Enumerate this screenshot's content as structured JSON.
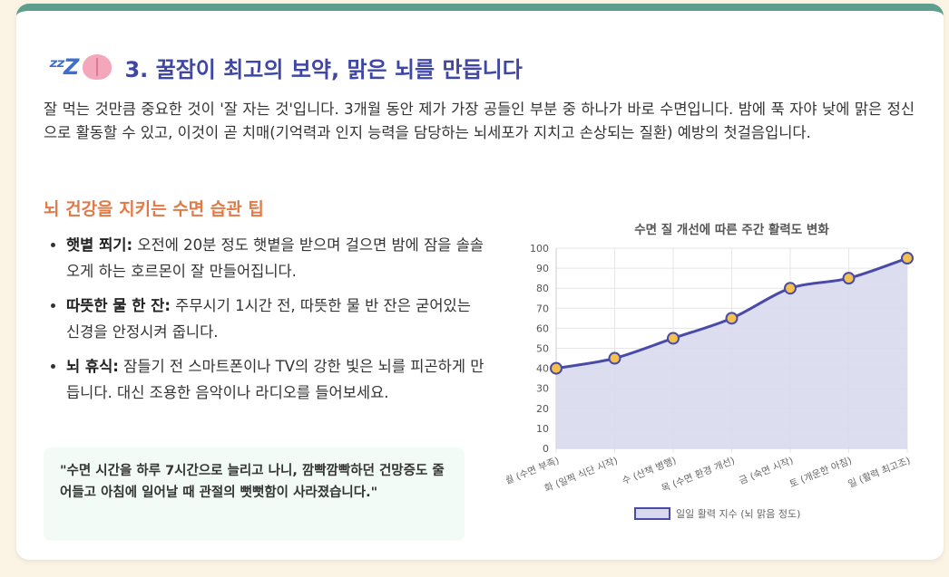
{
  "section": {
    "title": "3. 꿀잠이 최고의 보약, 맑은 뇌를 만듭니다",
    "intro": "잘 먹는 것만큼 중요한 것이 '잘 자는 것'입니다. 3개월 동안 제가 가장 공들인 부분 중 하나가 바로 수면입니다. 밤에 푹 자야 낮에 맑은 정신으로 활동할 수 있고, 이것이 곧 치매(기억력과 인지 능력을 담당하는 뇌세포가 지치고 손상되는 질환) 예방의 첫걸음입니다.",
    "icons": [
      "zzz-icon",
      "brain-icon"
    ]
  },
  "tips": {
    "heading": "뇌 건강을 지키는 수면 습관 팁",
    "items": [
      {
        "label": "햇볕 쬐기:",
        "text": "오전에 20분 정도 햇볕을 받으며 걸으면 밤에 잠을 솔솔 오게 하는 호르몬이 잘 만들어집니다."
      },
      {
        "label": "따뜻한 물 한 잔:",
        "text": "주무시기 1시간 전, 따뜻한 물 반 잔은 굳어있는 신경을 안정시켜 줍니다."
      },
      {
        "label": "뇌 휴식:",
        "text": "잠들기 전 스마트폰이나 TV의 강한 빛은 뇌를 피곤하게 만듭니다. 대신 조용한 음악이나 라디오를 들어보세요."
      }
    ]
  },
  "quote": "\"수면 시간을 하루 7시간으로 늘리고 나니, 깜빡깜빡하던 건망증도 줄어들고 아침에 일어날 때 관절의 뻣뻣함이 사라졌습니다.\"",
  "chart_data": {
    "type": "line",
    "title": "수면 질 개선에 따른 주간 활력도 변화",
    "categories": [
      "월 (수면 부족)",
      "화 (일찍 식단 시작)",
      "수 (산책 병행)",
      "목 (수면 환경 개선)",
      "금 (숙면 시작)",
      "토 (개운한 아침)",
      "일 (활력 최고조)"
    ],
    "series": [
      {
        "name": "일일 활력 지수 (뇌 맑음 정도)",
        "values": [
          40,
          45,
          55,
          65,
          80,
          85,
          95
        ]
      }
    ],
    "ylim": [
      0,
      100
    ],
    "yticks": [
      0,
      10,
      20,
      30,
      40,
      50,
      60,
      70,
      80,
      90,
      100
    ],
    "grid": true,
    "legend": "bottom",
    "colors": {
      "line": "#4a4aa8",
      "fill": "#d9d9ee",
      "point": "#f2c14e"
    }
  }
}
